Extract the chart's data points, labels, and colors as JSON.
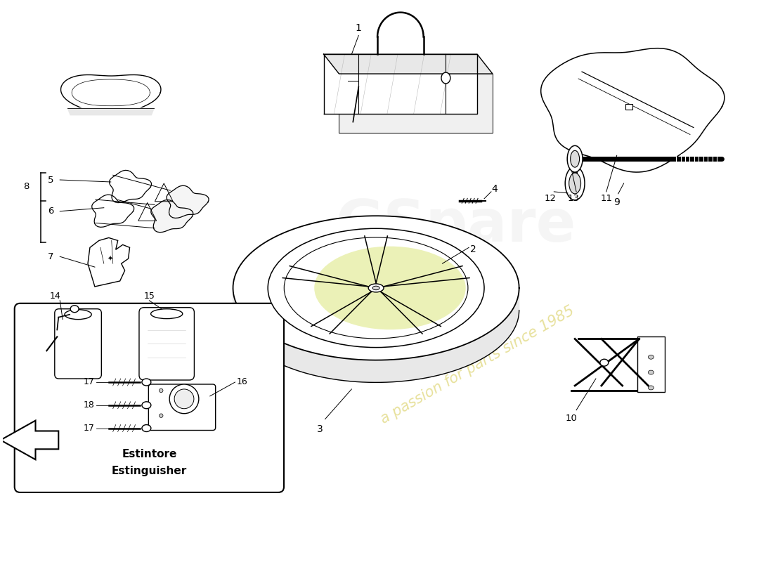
{
  "background_color": "#ffffff",
  "line_color": "#000000",
  "watermark_text": "a passion for parts since 1985",
  "watermark_color": "#d4c84a",
  "watermark_alpha": 0.55,
  "box_label_line1": "Estintore",
  "box_label_line2": "Estinguisher",
  "tire_highlight_color": "#d4e060",
  "tire_highlight_alpha": 0.45
}
